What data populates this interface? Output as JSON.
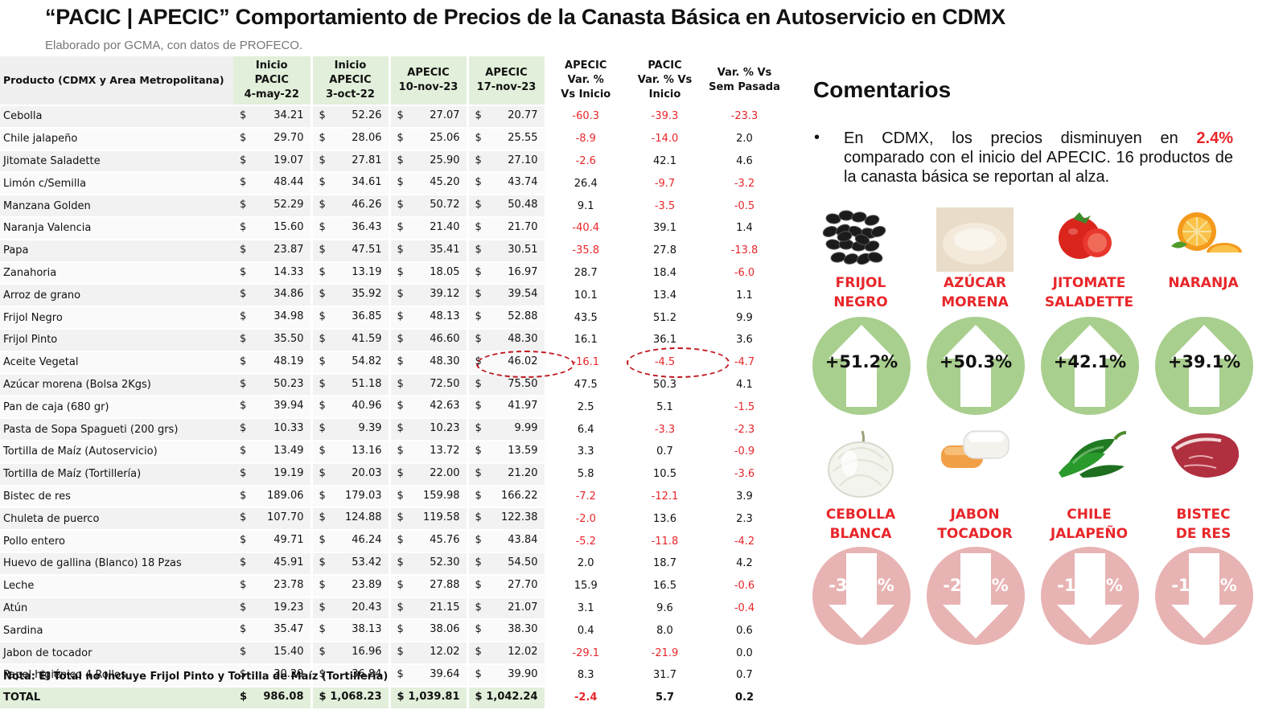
{
  "title": "“PACIC | APECIC” Comportamiento de Precios de la Canasta Básica en Autoservicio en CDMX",
  "subtitle": "Elaborado por GCMA, con datos de PROFECO.",
  "table": {
    "headers": {
      "product": "Producto (CDMX y Area Metropolitana)",
      "c1": [
        "Inicio",
        "PACIC",
        "4-may-22"
      ],
      "c2": [
        "Inicio",
        "APECIC",
        "3-oct-22"
      ],
      "c3": [
        "APECIC",
        "10-nov-23"
      ],
      "c4": [
        "APECIC",
        "17-nov-23"
      ],
      "c5": [
        "APECIC",
        "Var. %",
        "Vs  Inicio"
      ],
      "c6": [
        "PACIC",
        "Var. % Vs",
        "Inicio"
      ],
      "c7": [
        "Var. % Vs",
        "Sem Pasada"
      ]
    },
    "currency": "$",
    "rows": [
      {
        "product": "Cebolla",
        "p1": "34.21",
        "p2": "52.26",
        "p3": "27.07",
        "p4": "20.77",
        "v1": "-60.3",
        "v2": "-39.3",
        "v3": "-23.3"
      },
      {
        "product": "Chile jalapeño",
        "p1": "29.70",
        "p2": "28.06",
        "p3": "25.06",
        "p4": "25.55",
        "v1": "-8.9",
        "v2": "-14.0",
        "v3": "2.0"
      },
      {
        "product": "Jitomate Saladette",
        "p1": "19.07",
        "p2": "27.81",
        "p3": "25.90",
        "p4": "27.10",
        "v1": "-2.6",
        "v2": "42.1",
        "v3": "4.6"
      },
      {
        "product": "Limón c/Semilla",
        "p1": "48.44",
        "p2": "34.61",
        "p3": "45.20",
        "p4": "43.74",
        "v1": "26.4",
        "v2": "-9.7",
        "v3": "-3.2"
      },
      {
        "product": "Manzana Golden",
        "p1": "52.29",
        "p2": "46.26",
        "p3": "50.72",
        "p4": "50.48",
        "v1": "9.1",
        "v2": "-3.5",
        "v3": "-0.5"
      },
      {
        "product": "Naranja Valencia",
        "p1": "15.60",
        "p2": "36.43",
        "p3": "21.40",
        "p4": "21.70",
        "v1": "-40.4",
        "v2": "39.1",
        "v3": "1.4"
      },
      {
        "product": "Papa",
        "p1": "23.87",
        "p2": "47.51",
        "p3": "35.41",
        "p4": "30.51",
        "v1": "-35.8",
        "v2": "27.8",
        "v3": "-13.8"
      },
      {
        "product": "Zanahoria",
        "p1": "14.33",
        "p2": "13.19",
        "p3": "18.05",
        "p4": "16.97",
        "v1": "28.7",
        "v2": "18.4",
        "v3": "-6.0"
      },
      {
        "product": "Arroz de grano",
        "p1": "34.86",
        "p2": "35.92",
        "p3": "39.12",
        "p4": "39.54",
        "v1": "10.1",
        "v2": "13.4",
        "v3": "1.1"
      },
      {
        "product": "Frijol Negro",
        "p1": "34.98",
        "p2": "36.85",
        "p3": "48.13",
        "p4": "52.88",
        "v1": "43.5",
        "v2": "51.2",
        "v3": "9.9"
      },
      {
        "product": "Frijol Pinto",
        "p1": "35.50",
        "p2": "41.59",
        "p3": "46.60",
        "p4": "48.30",
        "v1": "16.1",
        "v2": "36.1",
        "v3": "3.6"
      },
      {
        "product": "Aceite Vegetal",
        "p1": "48.19",
        "p2": "54.82",
        "p3": "48.30",
        "p4": "46.02",
        "v1": "-16.1",
        "v2": "-4.5",
        "v3": "-4.7"
      },
      {
        "product": "Azúcar morena (Bolsa 2Kgs)",
        "p1": "50.23",
        "p2": "51.18",
        "p3": "72.50",
        "p4": "75.50",
        "v1": "47.5",
        "v2": "50.3",
        "v3": "4.1"
      },
      {
        "product": "Pan de caja (680 gr)",
        "p1": "39.94",
        "p2": "40.96",
        "p3": "42.63",
        "p4": "41.97",
        "v1": "2.5",
        "v2": "5.1",
        "v3": "-1.5"
      },
      {
        "product": "Pasta de Sopa Spagueti (200 grs)",
        "p1": "10.33",
        "p2": "9.39",
        "p3": "10.23",
        "p4": "9.99",
        "v1": "6.4",
        "v2": "-3.3",
        "v3": "-2.3"
      },
      {
        "product": "Tortilla de Maíz (Autoservicio)",
        "p1": "13.49",
        "p2": "13.16",
        "p3": "13.72",
        "p4": "13.59",
        "v1": "3.3",
        "v2": "0.7",
        "v3": "-0.9"
      },
      {
        "product": "Tortilla de Maíz (Tortillería)",
        "p1": "19.19",
        "p2": "20.03",
        "p3": "22.00",
        "p4": "21.20",
        "v1": "5.8",
        "v2": "10.5",
        "v3": "-3.6"
      },
      {
        "product": "Bistec de res",
        "p1": "189.06",
        "p2": "179.03",
        "p3": "159.98",
        "p4": "166.22",
        "v1": "-7.2",
        "v2": "-12.1",
        "v3": "3.9"
      },
      {
        "product": "Chuleta de puerco",
        "p1": "107.70",
        "p2": "124.88",
        "p3": "119.58",
        "p4": "122.38",
        "v1": "-2.0",
        "v2": "13.6",
        "v3": "2.3"
      },
      {
        "product": "Pollo entero",
        "p1": "49.71",
        "p2": "46.24",
        "p3": "45.76",
        "p4": "43.84",
        "v1": "-5.2",
        "v2": "-11.8",
        "v3": "-4.2"
      },
      {
        "product": "Huevo de gallina (Blanco) 18 Pzas",
        "p1": "45.91",
        "p2": "53.42",
        "p3": "52.30",
        "p4": "54.50",
        "v1": "2.0",
        "v2": "18.7",
        "v3": "4.2"
      },
      {
        "product": "Leche",
        "p1": "23.78",
        "p2": "23.89",
        "p3": "27.88",
        "p4": "27.70",
        "v1": "15.9",
        "v2": "16.5",
        "v3": "-0.6"
      },
      {
        "product": "Atún",
        "p1": "19.23",
        "p2": "20.43",
        "p3": "21.15",
        "p4": "21.07",
        "v1": "3.1",
        "v2": "9.6",
        "v3": "-0.4"
      },
      {
        "product": "Sardina",
        "p1": "35.47",
        "p2": "38.13",
        "p3": "38.06",
        "p4": "38.30",
        "v1": "0.4",
        "v2": "8.0",
        "v3": "0.6"
      },
      {
        "product": "Jabon de tocador",
        "p1": "15.40",
        "p2": "16.96",
        "p3": "12.02",
        "p4": "12.02",
        "v1": "-29.1",
        "v2": "-21.9",
        "v3": "0.0"
      },
      {
        "product": "Papel higiénico 4 Rollos",
        "p1": "30.29",
        "p2": "36.84",
        "p3": "39.64",
        "p4": "39.90",
        "v1": "8.3",
        "v2": "31.7",
        "v3": "0.7"
      }
    ],
    "total": {
      "product": "TOTAL",
      "p1": "986.08",
      "p2": "1,068.23",
      "p3": "1,039.81",
      "p4": "1,042.24",
      "v1": "-2.4",
      "v2": "5.7",
      "v3": "0.2"
    }
  },
  "note": "Nota: El Total no Incluye Frijol Pinto y Tortilla de Maíz (Tortilleria)",
  "comments": {
    "heading": "Comentarios",
    "bullet": "•",
    "text_before": "En CDMX, los precios disminuyen en ",
    "highlight": "2.4%",
    "text_after": " comparado con el inicio del APECIC. 16 productos de la canasta básica se reportan al alza."
  },
  "up_items": [
    {
      "line1": "FRIJOL",
      "line2": "NEGRO",
      "pct": "+51.2%",
      "icon": "black-beans-icon"
    },
    {
      "line1": "AZÚCAR",
      "line2": "MORENA",
      "pct": "+50.3%",
      "icon": "sugar-icon"
    },
    {
      "line1": "JITOMATE",
      "line2": "SALADETTE",
      "pct": "+42.1%",
      "icon": "tomato-icon"
    },
    {
      "line1": "NARANJA",
      "line2": "",
      "pct": "+39.1%",
      "icon": "orange-icon"
    }
  ],
  "down_items": [
    {
      "line1": "CEBOLLA",
      "line2": "BLANCA",
      "pct": "-39.3%",
      "icon": "onion-icon"
    },
    {
      "line1": "JABON",
      "line2": "TOCADOR",
      "pct": "-21.9%",
      "icon": "soap-icon"
    },
    {
      "line1": "CHILE",
      "line2": "JALAPEÑO",
      "pct": "-14.0%",
      "icon": "jalapeno-icon"
    },
    {
      "line1": "BISTEC",
      "line2": "DE RES",
      "pct": "-12.1%",
      "icon": "steak-icon"
    }
  ],
  "colors": {
    "accent_red": "#e8262a",
    "header_green": "#e2efda",
    "up_circle": "#a9cf8e",
    "down_circle": "#e8b3b3"
  }
}
